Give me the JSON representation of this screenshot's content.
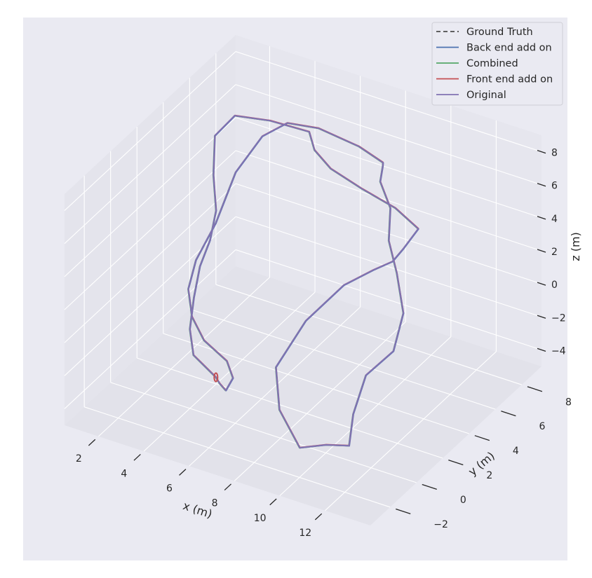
{
  "chart_data": {
    "type": "line",
    "projection": "3d",
    "title": "",
    "xlabel": "x (m)",
    "ylabel": "y (m)",
    "zlabel": "z (m)",
    "xlim": [
      0.5,
      14
    ],
    "ylim": [
      -3.5,
      9.5
    ],
    "zlim": [
      -5,
      9
    ],
    "xticks": [
      "2",
      "4",
      "6",
      "8",
      "10",
      "12"
    ],
    "yticks": [
      "−2",
      "0",
      "2",
      "4",
      "6",
      "8"
    ],
    "zticks": [
      "−4",
      "−2",
      "0",
      "2",
      "4",
      "6",
      "8"
    ],
    "grid": true,
    "legend_position": "top-right",
    "series": [
      {
        "name": "Ground Truth",
        "color": "#4c4c4c",
        "style": "dashed"
      },
      {
        "name": "Back end add on",
        "color": "#4c72b0",
        "style": "solid"
      },
      {
        "name": "Combined",
        "color": "#55a868",
        "style": "solid"
      },
      {
        "name": "Front end add on",
        "color": "#c44e52",
        "style": "solid"
      },
      {
        "name": "Original",
        "color": "#8172b2",
        "style": "solid"
      }
    ],
    "trajectory": [
      [
        4.8,
        0.6,
        -3.2
      ],
      [
        3.4,
        1.3,
        -3.0
      ],
      [
        2.6,
        2.4,
        -2.6
      ],
      [
        2.2,
        3.4,
        -1.6
      ],
      [
        2.0,
        4.2,
        -0.4
      ],
      [
        2.1,
        4.8,
        0.8
      ],
      [
        1.9,
        5.6,
        1.9
      ],
      [
        1.2,
        6.6,
        3.0
      ],
      [
        0.8,
        7.4,
        4.6
      ],
      [
        1.5,
        7.7,
        5.9
      ],
      [
        3.0,
        7.8,
        6.2
      ],
      [
        4.5,
        8.2,
        5.9
      ],
      [
        5.2,
        7.4,
        5.7
      ],
      [
        6.5,
        6.4,
        5.9
      ],
      [
        8.4,
        5.5,
        6.2
      ],
      [
        10.1,
        5.1,
        6.1
      ],
      [
        11.0,
        5.3,
        5.1
      ],
      [
        10.4,
        5.2,
        3.7
      ],
      [
        9.8,
        5.4,
        2.5
      ],
      [
        8.6,
        6.0,
        1.0
      ],
      [
        7.3,
        6.0,
        -0.5
      ],
      [
        6.5,
        4.5,
        -1.9
      ],
      [
        6.4,
        2.4,
        -3.2
      ],
      [
        7.6,
        0.6,
        -3.9
      ],
      [
        9.2,
        -0.6,
        -4.6
      ],
      [
        10.3,
        -0.5,
        -4.0
      ],
      [
        11.2,
        -0.3,
        -3.8
      ],
      [
        10.8,
        0.7,
        -2.8
      ],
      [
        10.2,
        2.7,
        -2.2
      ],
      [
        10.6,
        4.1,
        -1.6
      ],
      [
        10.4,
        5.2,
        -0.2
      ],
      [
        9.7,
        5.9,
        1.4
      ],
      [
        9.0,
        6.5,
        2.6
      ],
      [
        8.2,
        8.0,
        3.1
      ],
      [
        7.4,
        8.6,
        3.9
      ],
      [
        7.4,
        8.8,
        4.7
      ],
      [
        7.7,
        8.3,
        5.4
      ],
      [
        6.7,
        8.2,
        6.0
      ],
      [
        4.8,
        8.4,
        6.1
      ],
      [
        3.3,
        8.6,
        5.6
      ],
      [
        2.6,
        7.9,
        5.0
      ],
      [
        2.3,
        6.4,
        3.8
      ],
      [
        2.4,
        4.7,
        2.0
      ],
      [
        2.0,
        3.9,
        0.2
      ],
      [
        2.3,
        2.8,
        -0.6
      ],
      [
        3.1,
        1.7,
        -1.1
      ],
      [
        4.1,
        0.9,
        -1.5
      ],
      [
        5.4,
        0.4,
        -1.8
      ],
      [
        5.9,
        0.0,
        -2.3
      ],
      [
        5.7,
        -0.2,
        -3.0
      ],
      [
        5.2,
        0.2,
        -3.1
      ],
      [
        4.8,
        0.6,
        -3.2
      ]
    ]
  }
}
